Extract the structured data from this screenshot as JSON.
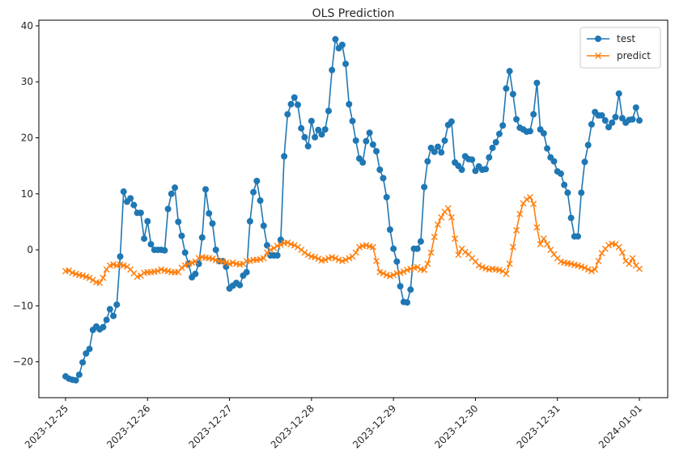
{
  "chart_data": {
    "type": "line",
    "title": "OLS Prediction",
    "xlabel": "",
    "ylabel": "",
    "x_start": "2023-12-25",
    "x_end": "2024-01-01",
    "x_ticks": [
      "2023-12-25",
      "2023-12-26",
      "2023-12-27",
      "2023-12-28",
      "2023-12-29",
      "2023-12-30",
      "2023-12-31",
      "2024-01-01"
    ],
    "y_ticks": [
      -20,
      -10,
      0,
      10,
      20,
      30,
      40
    ],
    "ylim": [
      -26.4,
      41.0
    ],
    "grid": false,
    "legend_position": "top-right",
    "series": [
      {
        "name": "test",
        "color": "#1f77b4",
        "marker": "circle",
        "values": [
          -22.6,
          -23.0,
          -23.2,
          -23.3,
          -22.3,
          -20.1,
          -18.5,
          -17.7,
          -14.3,
          -13.7,
          -14.2,
          -13.8,
          -12.5,
          -10.6,
          -11.8,
          -9.8,
          -1.2,
          10.4,
          8.6,
          9.2,
          8.0,
          6.6,
          6.6,
          2.0,
          5.1,
          1.0,
          0.0,
          0.0,
          0.0,
          -0.1,
          7.3,
          10.0,
          11.1,
          5.0,
          2.5,
          -0.5,
          -2.5,
          -4.9,
          -4.3,
          -2.5,
          2.2,
          10.8,
          6.5,
          4.7,
          0.0,
          -2.0,
          -2.0,
          -3.0,
          -6.9,
          -6.4,
          -5.9,
          -6.3,
          -4.6,
          -4.0,
          5.1,
          10.3,
          12.3,
          8.8,
          4.3,
          0.8,
          -1.0,
          -1.0,
          -1.0,
          1.8,
          16.7,
          24.2,
          26.0,
          27.2,
          25.9,
          21.7,
          20.1,
          18.5,
          23.0,
          20.1,
          21.4,
          20.6,
          21.5,
          24.8,
          32.1,
          37.6,
          36.0,
          36.6,
          33.2,
          26.0,
          23.0,
          19.5,
          16.3,
          15.6,
          19.4,
          20.9,
          18.8,
          17.6,
          14.3,
          12.8,
          9.4,
          3.6,
          0.2,
          -2.1,
          -6.5,
          -9.3,
          -9.4,
          -7.1,
          0.2,
          0.2,
          1.5,
          11.2,
          15.8,
          18.2,
          17.5,
          18.4,
          17.4,
          19.5,
          22.3,
          22.9,
          15.6,
          15.0,
          14.3,
          16.7,
          16.2,
          16.1,
          14.1,
          14.9,
          14.3,
          14.4,
          16.5,
          18.2,
          19.2,
          20.7,
          22.2,
          28.8,
          31.9,
          27.8,
          23.3,
          21.8,
          21.5,
          21.1,
          21.2,
          24.2,
          29.8,
          21.5,
          20.8,
          18.1,
          16.5,
          15.8,
          14.0,
          13.6,
          11.6,
          10.2,
          5.7,
          2.4,
          2.4,
          10.2,
          15.7,
          18.7,
          22.4,
          24.6,
          24.0,
          24.0,
          23.1,
          21.9,
          22.7,
          23.7,
          27.9,
          23.5,
          22.7,
          23.2,
          23.3,
          25.4,
          23.1
        ]
      },
      {
        "name": "predict",
        "color": "#ff7f0e",
        "marker": "x",
        "values": [
          -3.8,
          -3.7,
          -4.1,
          -4.3,
          -4.5,
          -4.6,
          -4.8,
          -5.0,
          -5.4,
          -5.8,
          -5.9,
          -5.0,
          -3.5,
          -2.8,
          -2.6,
          -2.8,
          -2.6,
          -2.8,
          -3.0,
          -3.5,
          -4.2,
          -4.8,
          -4.6,
          -4.1,
          -4.0,
          -4.0,
          -3.9,
          -3.8,
          -3.5,
          -3.7,
          -3.8,
          -4.0,
          -4.0,
          -4.0,
          -3.2,
          -2.8,
          -2.5,
          -2.3,
          -2.1,
          -1.5,
          -1.3,
          -1.4,
          -1.5,
          -1.6,
          -1.8,
          -2.0,
          -2.1,
          -2.3,
          -2.5,
          -2.3,
          -2.5,
          -2.6,
          -2.5,
          -2.0,
          -2.0,
          -1.8,
          -1.8,
          -1.7,
          -1.5,
          -0.5,
          0.0,
          0.3,
          0.7,
          0.9,
          1.2,
          1.3,
          1.0,
          0.8,
          0.5,
          0.0,
          -0.5,
          -0.9,
          -1.2,
          -1.3,
          -1.6,
          -1.9,
          -1.8,
          -1.5,
          -1.3,
          -1.5,
          -1.8,
          -2.0,
          -1.8,
          -1.5,
          -1.2,
          -0.5,
          0.5,
          0.7,
          0.8,
          0.6,
          0.5,
          -2.0,
          -4.0,
          -4.2,
          -4.5,
          -4.7,
          -4.5,
          -4.2,
          -4.1,
          -3.9,
          -3.6,
          -3.4,
          -3.2,
          -3.1,
          -3.5,
          -3.6,
          -2.5,
          -0.5,
          2.3,
          4.5,
          5.8,
          6.8,
          7.4,
          5.8,
          2.0,
          -0.9,
          0.2,
          -0.4,
          -0.8,
          -1.5,
          -2.1,
          -2.8,
          -3.1,
          -3.3,
          -3.5,
          -3.4,
          -3.5,
          -3.6,
          -3.8,
          -4.3,
          -2.5,
          0.5,
          3.5,
          6.4,
          8.3,
          9.0,
          9.4,
          8.2,
          4.0,
          1.0,
          2.0,
          1.0,
          0.0,
          -0.8,
          -1.5,
          -2.1,
          -2.3,
          -2.4,
          -2.5,
          -2.7,
          -2.8,
          -3.0,
          -3.2,
          -3.5,
          -3.8,
          -3.5,
          -2.0,
          -0.6,
          0.2,
          0.8,
          1.1,
          1.0,
          0.5,
          -0.5,
          -2.0,
          -2.5,
          -1.5,
          -2.8,
          -3.4
        ]
      }
    ]
  }
}
